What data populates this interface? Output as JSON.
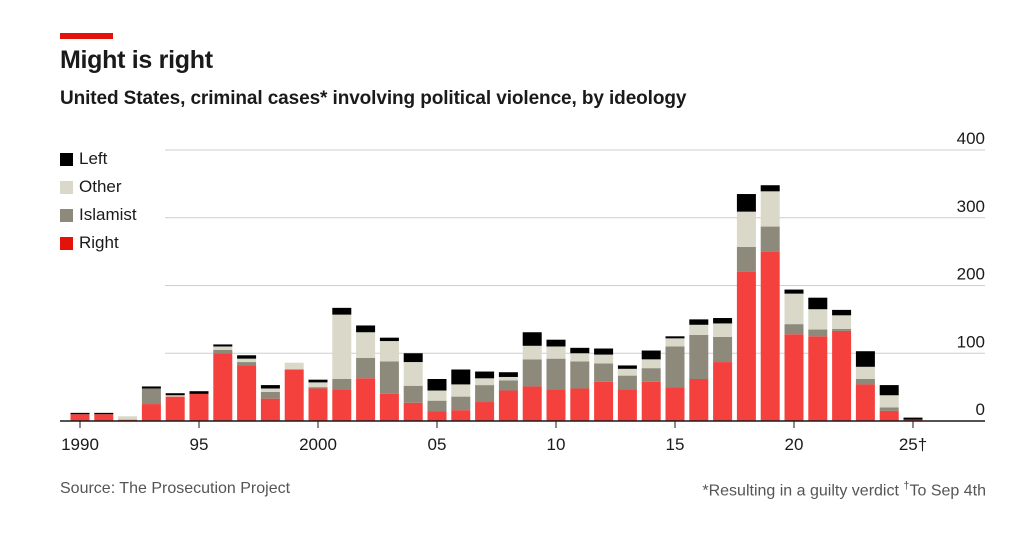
{
  "header": {
    "title": "Might is right",
    "subtitle": "United States, criminal cases* involving political violence, by ideology"
  },
  "legend": [
    {
      "label": "Left",
      "color": "#000000"
    },
    {
      "label": "Other",
      "color": "#d9d8c9"
    },
    {
      "label": "Islamist",
      "color": "#8d8a7c"
    },
    {
      "label": "Right",
      "color": "#f5413d"
    }
  ],
  "footer": {
    "source": "Source: The Prosecution Project",
    "note": "*Resulting in a guilty verdict",
    "note_dagger": "†",
    "note_to": "To Sep 4th"
  },
  "chart_data": {
    "type": "bar",
    "stacked": true,
    "title": "Might is right",
    "subtitle": "United States, criminal cases* involving political violence, by ideology",
    "ylim": [
      0,
      400
    ],
    "yticks": [
      0,
      100,
      200,
      300,
      400
    ],
    "xtick_labels": [
      {
        "year": 1990,
        "label": "1990"
      },
      {
        "year": 1995,
        "label": "95"
      },
      {
        "year": 2000,
        "label": "2000"
      },
      {
        "year": 2005,
        "label": "05"
      },
      {
        "year": 2010,
        "label": "10"
      },
      {
        "year": 2015,
        "label": "15"
      },
      {
        "year": 2020,
        "label": "20"
      },
      {
        "year": 2025,
        "label": "25†"
      }
    ],
    "categories": [
      1990,
      1991,
      1992,
      1993,
      1994,
      1995,
      1996,
      1997,
      1998,
      1999,
      2000,
      2001,
      2002,
      2003,
      2004,
      2005,
      2006,
      2007,
      2008,
      2009,
      2010,
      2011,
      2012,
      2013,
      2014,
      2015,
      2016,
      2017,
      2018,
      2019,
      2020,
      2021,
      2022,
      2023,
      2024,
      2025
    ],
    "series": [
      {
        "name": "Right",
        "color": "#f5413d",
        "values": [
          10,
          10,
          2,
          25,
          36,
          40,
          100,
          82,
          33,
          76,
          48,
          47,
          63,
          40,
          27,
          14,
          16,
          28,
          45,
          51,
          47,
          48,
          58,
          47,
          58,
          50,
          62,
          87,
          220,
          250,
          128,
          125,
          133,
          54,
          15,
          2
        ]
      },
      {
        "name": "Islamist",
        "color": "#8d8a7c",
        "values": [
          0,
          0,
          0,
          23,
          0,
          0,
          5,
          5,
          10,
          0,
          2,
          15,
          30,
          48,
          25,
          16,
          20,
          25,
          15,
          40,
          45,
          40,
          27,
          20,
          20,
          60,
          65,
          37,
          37,
          37,
          15,
          10,
          3,
          8,
          5,
          0
        ]
      },
      {
        "name": "Other",
        "color": "#d9d8c9",
        "values": [
          0,
          0,
          5,
          0,
          2,
          0,
          5,
          5,
          5,
          10,
          7,
          95,
          38,
          30,
          35,
          15,
          18,
          10,
          5,
          20,
          18,
          12,
          13,
          10,
          13,
          12,
          15,
          20,
          52,
          52,
          45,
          30,
          20,
          18,
          18,
          0
        ]
      },
      {
        "name": "Left",
        "color": "#000000",
        "values": [
          2,
          2,
          0,
          3,
          3,
          4,
          3,
          5,
          5,
          0,
          4,
          10,
          10,
          5,
          13,
          17,
          22,
          10,
          7,
          20,
          10,
          8,
          9,
          5,
          13,
          3,
          8,
          8,
          26,
          9,
          6,
          17,
          8,
          23,
          15,
          3
        ]
      }
    ]
  }
}
